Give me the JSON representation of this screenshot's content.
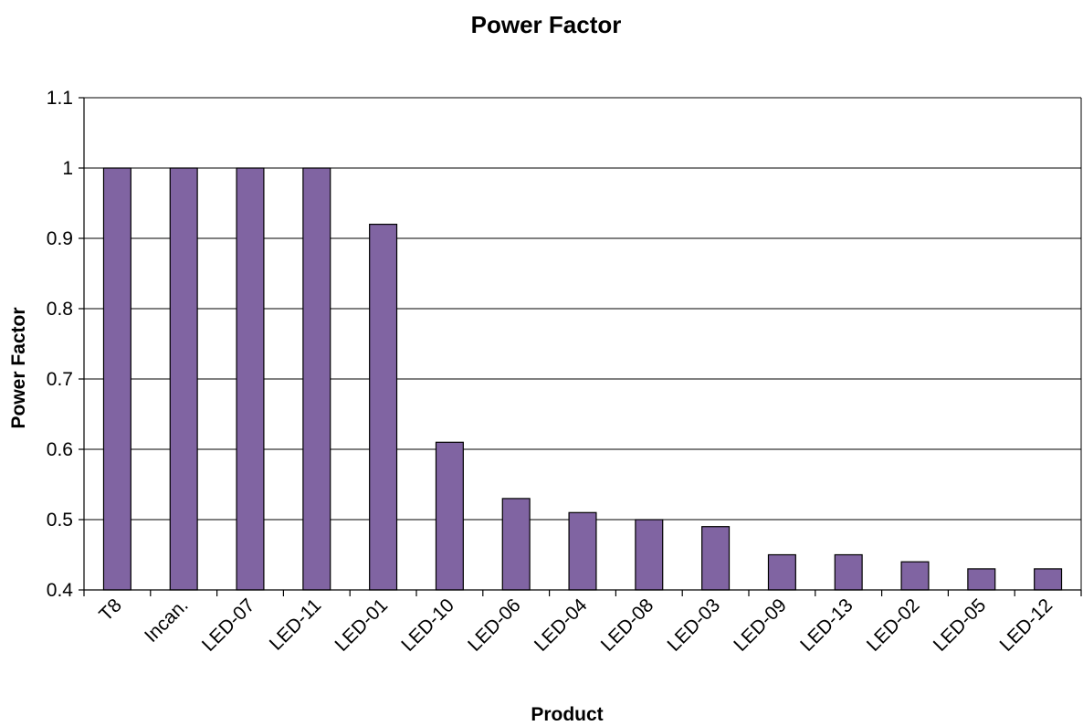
{
  "chart_data": {
    "type": "bar",
    "title": "Power Factor",
    "xlabel": "Product",
    "ylabel": "Power Factor",
    "categories": [
      "T8",
      "Incan.",
      "LED-07",
      "LED-11",
      "LED-01",
      "LED-10",
      "LED-06",
      "LED-04",
      "LED-08",
      "LED-03",
      "LED-09",
      "LED-13",
      "LED-02",
      "LED-05",
      "LED-12"
    ],
    "values": [
      1.0,
      1.0,
      1.0,
      1.0,
      0.92,
      0.61,
      0.53,
      0.51,
      0.5,
      0.49,
      0.45,
      0.45,
      0.44,
      0.43,
      0.43
    ],
    "ylim": [
      0.4,
      1.1
    ],
    "yticks": [
      "0.4",
      "0.5",
      "0.6",
      "0.7",
      "0.8",
      "0.9",
      "1",
      "1.1"
    ],
    "grid": true,
    "legend": "none",
    "colors": {
      "bar": "#8064A2"
    }
  }
}
